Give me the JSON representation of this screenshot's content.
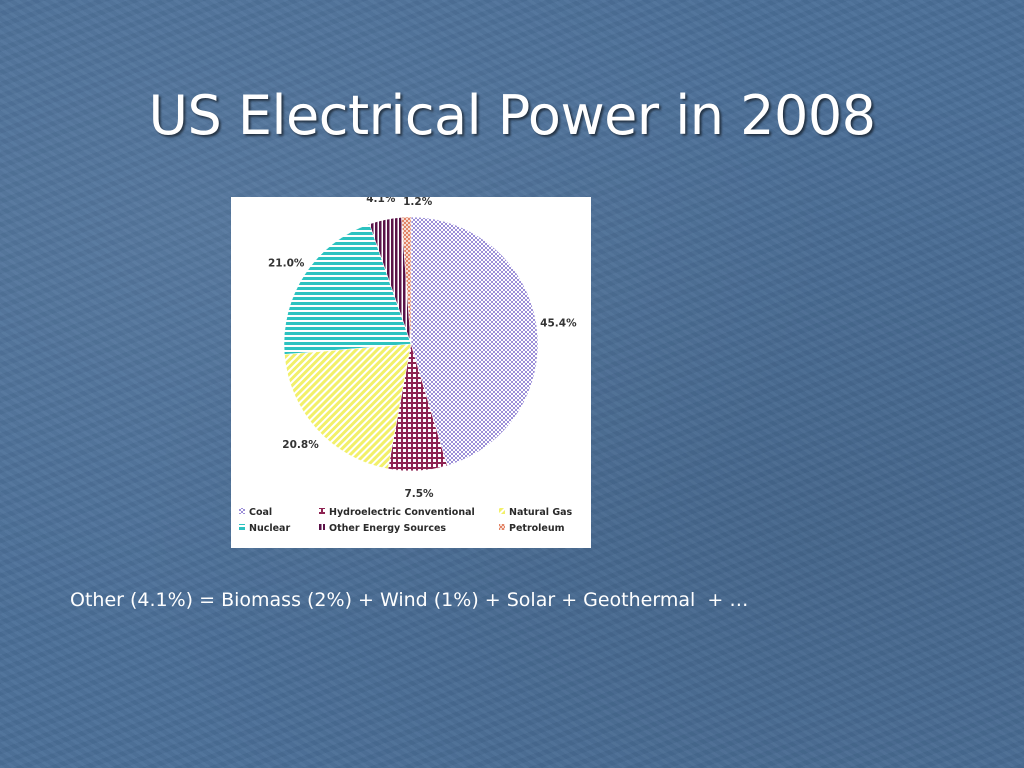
{
  "slide": {
    "title": "US Electrical Power in 2008",
    "caption": "Other (4.1%) = Biomass (2%) + Wind (1%) + Solar + Geothermal  + …"
  },
  "chart_data": {
    "type": "pie",
    "slices": [
      {
        "name": "Coal",
        "value": 45.4,
        "label": "45.4%",
        "color": "#9c8fd8",
        "pattern": "checker"
      },
      {
        "name": "Hydroelectric Conventional",
        "value": 7.5,
        "label": "7.5%",
        "color": "#8e2352",
        "pattern": "grid"
      },
      {
        "name": "Natural Gas",
        "value": 20.8,
        "label": "20.8%",
        "color": "#f2f06a",
        "pattern": "diagonal"
      },
      {
        "name": "Nuclear",
        "value": 21.0,
        "label": "21.0%",
        "color": "#2cc2c0",
        "pattern": "hstripe"
      },
      {
        "name": "Other Energy Sources",
        "value": 4.1,
        "label": "4.1%",
        "color": "#5a1248",
        "pattern": "vstripe"
      },
      {
        "name": "Petroleum",
        "value": 1.2,
        "label": "1.2%",
        "color": "#e07a5a",
        "pattern": "cross"
      }
    ],
    "legend": [
      "Coal",
      "Hydroelectric Conventional",
      "Natural Gas",
      "Nuclear",
      "Other Energy Sources",
      "Petroleum"
    ],
    "legend_position": "bottom"
  }
}
